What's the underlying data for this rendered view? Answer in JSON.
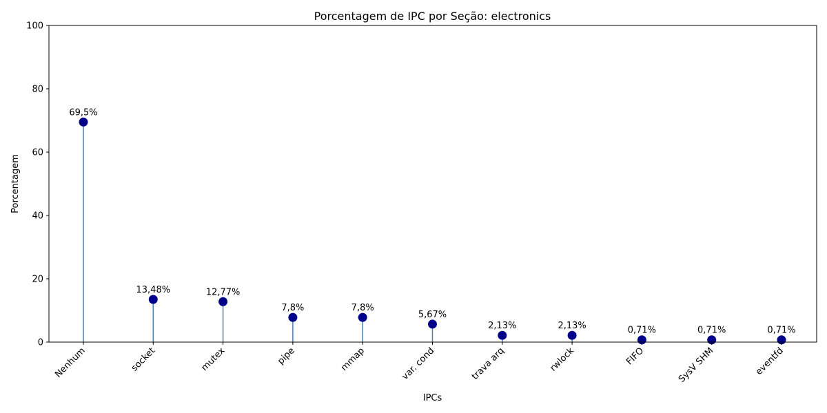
{
  "chart_data": {
    "type": "lollipop",
    "title": "Porcentagem de IPC por Seção: electronics",
    "xlabel": "IPCs",
    "ylabel": "Porcentagem",
    "ylim": [
      0,
      100
    ],
    "yticks": [
      "0",
      "20",
      "40",
      "60",
      "80",
      "100"
    ],
    "grid": false,
    "legend": "none",
    "categories": [
      "Nenhum",
      "socket",
      "mutex",
      "pipe",
      "mmap",
      "var. cond",
      "trava arq",
      "rwlock",
      "FIFO",
      "SysV SHM",
      "eventfd"
    ],
    "values": [
      69.5,
      13.48,
      12.77,
      7.8,
      7.8,
      5.67,
      2.13,
      2.13,
      0.71,
      0.71,
      0.71
    ],
    "data_labels": [
      "69,5%",
      "13,48%",
      "12,77%",
      "7,8%",
      "7,8%",
      "5,67%",
      "2,13%",
      "2,13%",
      "0,71%",
      "0,71%",
      "0,71%"
    ],
    "colors": {
      "marker": "#00008b",
      "stem": "#4682b4"
    }
  }
}
